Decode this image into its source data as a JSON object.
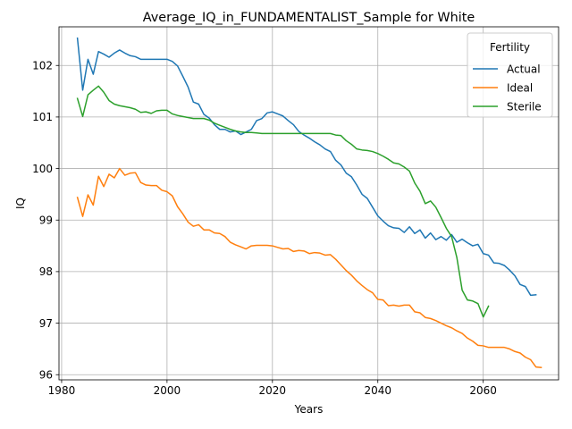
{
  "chart_data": {
    "type": "line",
    "title": "Average_IQ_in_FUNDAMENTALIST_Sample for White",
    "xlabel": "Years",
    "ylabel": "IQ",
    "xlim": [
      1979.5,
      2074.3
    ],
    "ylim": [
      95.9,
      102.75
    ],
    "xticks": [
      1980,
      2000,
      2020,
      2040,
      2060
    ],
    "xtick_labels": [
      "1980",
      "2000",
      "2020",
      "2040",
      "2060"
    ],
    "yticks": [
      96,
      97,
      98,
      99,
      100,
      101,
      102
    ],
    "ytick_labels": [
      "96",
      "97",
      "98",
      "99",
      "100",
      "101",
      "102"
    ],
    "grid": true,
    "legend": {
      "title": "Fertility",
      "placement": "top-right"
    },
    "series": [
      {
        "name": "Actual",
        "color": "#1f77b4",
        "x": [
          1983,
          1984,
          1985,
          1986,
          1987,
          1988,
          1989,
          1990,
          1991,
          1992,
          1993,
          1994,
          1995,
          1996,
          1997,
          1998,
          1999,
          2000,
          2001,
          2002,
          2003,
          2004,
          2005,
          2006,
          2007,
          2008,
          2009,
          2010,
          2011,
          2012,
          2013,
          2014,
          2015,
          2016,
          2017,
          2018,
          2019,
          2020,
          2021,
          2022,
          2023,
          2024,
          2025,
          2026,
          2027,
          2028,
          2029,
          2030,
          2031,
          2032,
          2033,
          2034,
          2035,
          2036,
          2037,
          2038,
          2039,
          2040,
          2041,
          2042,
          2043,
          2044,
          2045,
          2046,
          2047,
          2048,
          2049,
          2050,
          2051,
          2052,
          2053,
          2054,
          2055,
          2056,
          2057,
          2058,
          2059,
          2060,
          2061,
          2062,
          2063,
          2064,
          2065,
          2066,
          2067,
          2068,
          2069,
          2070
        ],
        "values": [
          102.53,
          101.52,
          102.12,
          101.83,
          102.27,
          102.22,
          102.16,
          102.24,
          102.3,
          102.24,
          102.19,
          102.17,
          102.12,
          102.12,
          102.12,
          102.12,
          102.12,
          102.12,
          102.08,
          101.99,
          101.79,
          101.58,
          101.29,
          101.25,
          101.05,
          100.98,
          100.85,
          100.76,
          100.76,
          100.71,
          100.73,
          100.66,
          100.71,
          100.76,
          100.93,
          100.97,
          101.08,
          101.1,
          101.06,
          101.02,
          100.93,
          100.85,
          100.72,
          100.65,
          100.59,
          100.52,
          100.46,
          100.38,
          100.33,
          100.16,
          100.07,
          99.91,
          99.84,
          99.68,
          99.5,
          99.42,
          99.25,
          99.08,
          98.98,
          98.89,
          98.85,
          98.84,
          98.76,
          98.87,
          98.74,
          98.81,
          98.65,
          98.75,
          98.62,
          98.68,
          98.61,
          98.72,
          98.57,
          98.63,
          98.56,
          98.5,
          98.53,
          98.35,
          98.32,
          98.17,
          98.16,
          98.12,
          98.03,
          97.92,
          97.75,
          97.71,
          97.54,
          97.55
        ]
      },
      {
        "name": "Ideal",
        "color": "#ff7f0e",
        "x": [
          1983,
          1984,
          1985,
          1986,
          1987,
          1988,
          1989,
          1990,
          1991,
          1992,
          1993,
          1994,
          1995,
          1996,
          1997,
          1998,
          1999,
          2000,
          2001,
          2002,
          2003,
          2004,
          2005,
          2006,
          2007,
          2008,
          2009,
          2010,
          2011,
          2012,
          2013,
          2014,
          2015,
          2016,
          2017,
          2018,
          2019,
          2020,
          2021,
          2022,
          2023,
          2024,
          2025,
          2026,
          2027,
          2028,
          2029,
          2030,
          2031,
          2032,
          2033,
          2034,
          2035,
          2036,
          2037,
          2038,
          2039,
          2040,
          2041,
          2042,
          2043,
          2044,
          2045,
          2046,
          2047,
          2048,
          2049,
          2050,
          2051,
          2052,
          2053,
          2054,
          2055,
          2056,
          2057,
          2058,
          2059,
          2060,
          2061,
          2062,
          2063,
          2064,
          2065,
          2066,
          2067,
          2068,
          2069,
          2070
        ],
        "values": [
          99.44,
          99.07,
          99.49,
          99.29,
          99.85,
          99.65,
          99.89,
          99.82,
          100.0,
          99.87,
          99.91,
          99.92,
          99.73,
          99.68,
          99.67,
          99.67,
          99.58,
          99.55,
          99.47,
          99.26,
          99.12,
          98.96,
          98.88,
          98.91,
          98.81,
          98.81,
          98.75,
          98.74,
          98.68,
          98.57,
          98.52,
          98.48,
          98.44,
          98.5,
          98.51,
          98.51,
          98.51,
          98.5,
          98.47,
          98.44,
          98.45,
          98.39,
          98.41,
          98.4,
          98.35,
          98.37,
          98.36,
          98.32,
          98.33,
          98.24,
          98.13,
          98.02,
          97.93,
          97.82,
          97.73,
          97.65,
          97.59,
          97.46,
          97.45,
          97.34,
          97.35,
          97.33,
          97.35,
          97.35,
          97.22,
          97.2,
          97.11,
          97.09,
          97.05,
          97.0,
          96.95,
          96.91,
          96.85,
          96.8,
          96.71,
          96.65,
          96.57,
          96.56,
          96.53,
          96.53,
          96.53,
          96.53,
          96.5,
          96.45,
          96.42,
          96.34,
          96.29,
          96.15
        ],
        "x_end": 2071,
        "value_end": 96.14
      },
      {
        "name": "Sterile",
        "color": "#2ca02c",
        "x": [
          1983,
          1984,
          1985,
          1986,
          1987,
          1988,
          1989,
          1990,
          1991,
          1992,
          1993,
          1994,
          1995,
          1996,
          1997,
          1998,
          1999,
          2000,
          2001,
          2002,
          2003,
          2004,
          2005,
          2006,
          2007,
          2008,
          2009,
          2010,
          2011,
          2012,
          2013,
          2014,
          2015,
          2016,
          2017,
          2018,
          2019,
          2020,
          2021,
          2022,
          2023,
          2024,
          2025,
          2026,
          2027,
          2028,
          2029,
          2030,
          2031,
          2032,
          2033,
          2034,
          2035,
          2036,
          2037,
          2038,
          2039,
          2040,
          2041,
          2042,
          2043,
          2044,
          2045,
          2046,
          2047,
          2048,
          2049,
          2050,
          2051,
          2052,
          2053,
          2054,
          2055,
          2056,
          2057,
          2058,
          2059,
          2060,
          2061
        ],
        "values": [
          101.36,
          101.01,
          101.43,
          101.52,
          101.6,
          101.48,
          101.32,
          101.25,
          101.22,
          101.2,
          101.18,
          101.15,
          101.09,
          101.1,
          101.07,
          101.12,
          101.13,
          101.13,
          101.06,
          101.03,
          101.01,
          100.99,
          100.97,
          100.97,
          100.97,
          100.94,
          100.88,
          100.84,
          100.8,
          100.76,
          100.73,
          100.71,
          100.7,
          100.7,
          100.69,
          100.68,
          100.68,
          100.68,
          100.68,
          100.68,
          100.68,
          100.68,
          100.68,
          100.68,
          100.68,
          100.68,
          100.68,
          100.68,
          100.68,
          100.65,
          100.64,
          100.54,
          100.47,
          100.38,
          100.36,
          100.35,
          100.33,
          100.29,
          100.24,
          100.18,
          100.11,
          100.09,
          100.03,
          99.95,
          99.72,
          99.56,
          99.32,
          99.37,
          99.25,
          99.05,
          98.84,
          98.68,
          98.27,
          97.64,
          97.45,
          97.43,
          97.38,
          97.12,
          97.33
        ]
      }
    ]
  }
}
